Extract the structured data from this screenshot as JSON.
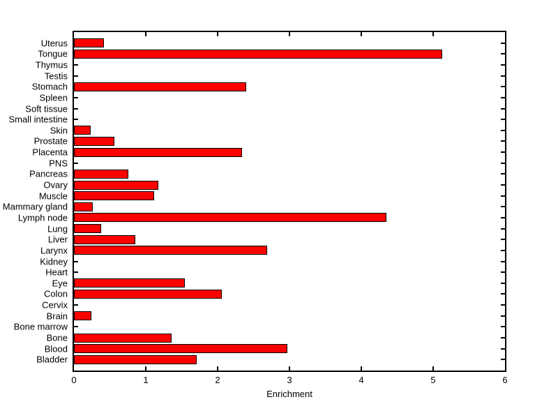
{
  "window": {
    "background": "#ffffff"
  },
  "chart_data": {
    "type": "bar",
    "orientation": "horizontal",
    "title": "",
    "xlabel": "Enrichment",
    "ylabel": "",
    "xlim": [
      0,
      6
    ],
    "xticks": [
      0,
      1,
      2,
      3,
      4,
      5,
      6
    ],
    "xtick_labels": [
      "0",
      "1",
      "2",
      "3",
      "4",
      "5",
      "6"
    ],
    "grid": false,
    "legend": null,
    "bar_color": "#ff0000",
    "bar_edge_color": "#000000",
    "axis_color": "#000000",
    "categories_top_to_bottom": [
      "Uterus",
      "Tongue",
      "Thymus",
      "Testis",
      "Stomach",
      "Spleen",
      "Soft tissue",
      "Small intestine",
      "Skin",
      "Prostate",
      "Placenta",
      "PNS",
      "Pancreas",
      "Ovary",
      "Muscle",
      "Mammary gland",
      "Lymph node",
      "Lung",
      "Liver",
      "Larynx",
      "Kidney",
      "Heart",
      "Eye",
      "Colon",
      "Cervix",
      "Brain",
      "Bone marrow",
      "Bone",
      "Blood",
      "Bladder"
    ],
    "values_top_to_bottom": [
      0.42,
      5.13,
      0,
      0,
      2.4,
      0,
      0,
      0,
      0.23,
      0.56,
      2.34,
      0,
      0.76,
      1.17,
      1.12,
      0.26,
      4.35,
      0.38,
      0.85,
      2.69,
      0,
      0,
      1.54,
      2.06,
      0,
      0.24,
      0,
      1.36,
      2.97,
      1.71
    ]
  }
}
